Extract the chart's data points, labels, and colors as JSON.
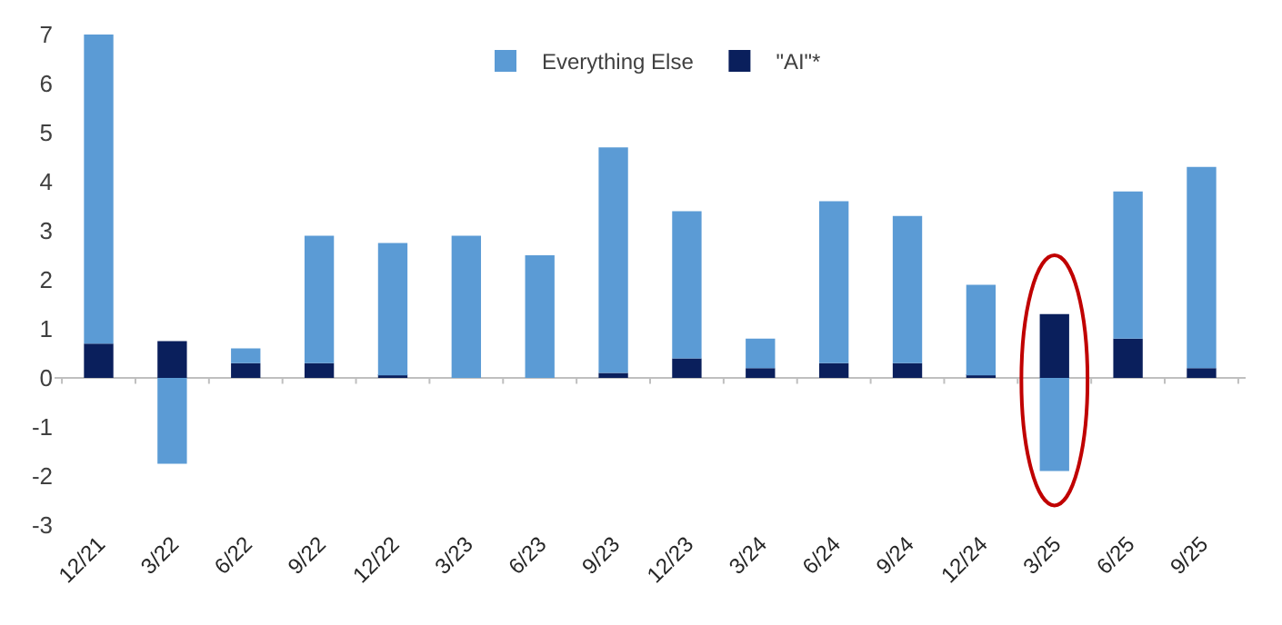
{
  "chart_data": {
    "type": "bar",
    "stacked": true,
    "categories": [
      "12/21",
      "3/22",
      "6/22",
      "9/22",
      "12/22",
      "3/23",
      "6/23",
      "9/23",
      "12/23",
      "3/24",
      "6/24",
      "9/24",
      "12/24",
      "3/25",
      "6/25",
      "9/25"
    ],
    "series": [
      {
        "name": "\"AI\"*",
        "color": "#0a1f5c",
        "values": [
          0.7,
          0.75,
          0.3,
          0.3,
          0.05,
          0,
          0,
          0.1,
          0.4,
          0.2,
          0.3,
          0.3,
          0.05,
          1.3,
          0.8,
          0.2
        ]
      },
      {
        "name": "Everything Else",
        "color": "#5b9bd5",
        "values": [
          6.3,
          -1.75,
          0.3,
          2.6,
          2.7,
          2.9,
          2.5,
          4.6,
          3.0,
          0.6,
          3.3,
          3.0,
          1.85,
          -1.9,
          3.0,
          4.1
        ]
      }
    ],
    "ylim": [
      -3,
      7
    ],
    "yticks": [
      -3,
      -2,
      -1,
      0,
      1,
      2,
      3,
      4,
      5,
      6,
      7
    ],
    "legend": "top",
    "ref_lines": [
      {
        "axis": "y",
        "value": 0,
        "color": "#bfbfbf"
      }
    ]
  }
}
